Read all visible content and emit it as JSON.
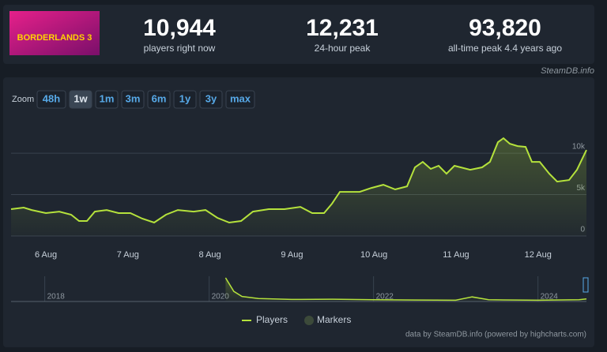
{
  "header": {
    "logo_text": "BORDERLANDS 3",
    "stats": [
      {
        "value": "10,944",
        "label": "players right now"
      },
      {
        "value": "12,231",
        "label": "24-hour peak"
      },
      {
        "value": "93,820",
        "label": "all-time peak 4.4 years ago"
      }
    ],
    "source": "SteamDB.info"
  },
  "zoom": {
    "label": "Zoom",
    "buttons": [
      "48h",
      "1w",
      "1m",
      "3m",
      "6m",
      "1y",
      "3y",
      "max"
    ],
    "active": 1
  },
  "chart_data": [
    {
      "type": "line",
      "xlim": [
        5.576,
        12.59
      ],
      "ylim": [
        0,
        14300
      ],
      "xticks": [
        {
          "value": 6,
          "label": "6 Aug"
        },
        {
          "value": 7,
          "label": "7 Aug"
        },
        {
          "value": 8,
          "label": "8 Aug"
        },
        {
          "value": 9,
          "label": "9 Aug"
        },
        {
          "value": 10,
          "label": "10 Aug"
        },
        {
          "value": 11,
          "label": "11 Aug"
        },
        {
          "value": 12,
          "label": "12 Aug"
        }
      ],
      "yticks": [
        0,
        {
          "value": 5000,
          "label": "5k"
        },
        {
          "value": 10000,
          "label": "10k"
        }
      ],
      "grid": true,
      "x": [
        5.576,
        5.73,
        5.827,
        6.0,
        6.164,
        6.308,
        6.405,
        6.501,
        6.597,
        6.742,
        6.886,
        7.031,
        7.175,
        7.32,
        7.464,
        7.609,
        7.802,
        7.946,
        8.091,
        8.235,
        8.38,
        8.524,
        8.717,
        8.909,
        9.102,
        9.247,
        9.391,
        9.488,
        9.584,
        9.825,
        9.969,
        10.114,
        10.258,
        10.403,
        10.499,
        10.595,
        10.692,
        10.788,
        10.884,
        10.981,
        11.173,
        11.318,
        11.414,
        11.511,
        11.578,
        11.655,
        11.751,
        11.848,
        11.925,
        12.021,
        12.137,
        12.233,
        12.378,
        12.474,
        12.59
      ],
      "series": [
        {
          "name": "Players",
          "color": "#b5e23c",
          "values": [
            3240,
            3430,
            3140,
            2760,
            2950,
            2570,
            1810,
            1810,
            2950,
            3140,
            2760,
            2760,
            2100,
            1620,
            2570,
            3140,
            2950,
            3140,
            2190,
            1620,
            1810,
            2950,
            3240,
            3240,
            3520,
            2760,
            2760,
            3900,
            5330,
            5330,
            5810,
            6190,
            5620,
            6000,
            8290,
            8950,
            8100,
            8480,
            7520,
            8480,
            8000,
            8290,
            8950,
            11330,
            11810,
            11140,
            10860,
            10760,
            8950,
            8950,
            7520,
            6570,
            6760,
            8000,
            10380
          ]
        }
      ],
      "markers": {
        "name": "Markers",
        "color": "#3c4a3a"
      }
    },
    {
      "type": "navigator",
      "xlim": [
        2017.59,
        2024.59
      ],
      "ylim": [
        0,
        100000
      ],
      "xticks": [
        2018,
        2020,
        2022,
        2024
      ],
      "x": [
        2020.2,
        2020.3,
        2020.4,
        2020.6,
        2021.0,
        2021.5,
        2022.0,
        2022.5,
        2023.0,
        2023.2,
        2023.4,
        2024.0,
        2024.5,
        2024.59
      ],
      "series": [
        {
          "color": "#b5e23c",
          "values": [
            93820,
            40000,
            20000,
            12000,
            8000,
            9000,
            7000,
            6000,
            5000,
            18000,
            7000,
            5000,
            7000,
            10380
          ]
        }
      ]
    }
  ],
  "credits": "data by SteamDB.info (powered by highcharts.com)"
}
